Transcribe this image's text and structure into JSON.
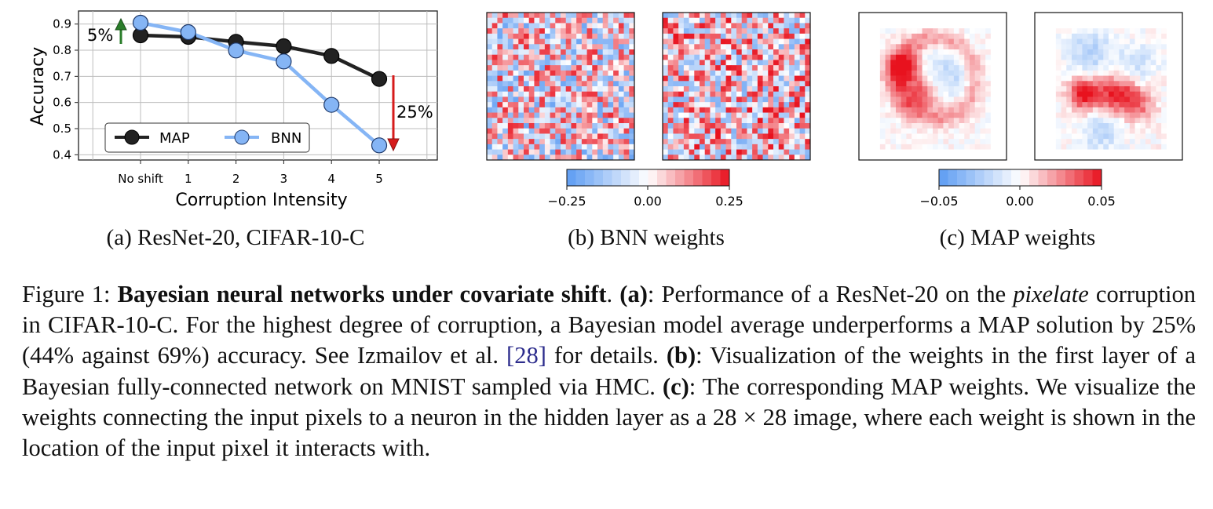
{
  "chart_data": {
    "type": "line",
    "title": "",
    "xlabel": "Corruption Intensity",
    "ylabel": "Accuracy",
    "categories": [
      "No shift",
      "1",
      "2",
      "3",
      "4",
      "5"
    ],
    "yticks": [
      "0.4",
      "0.5",
      "0.6",
      "0.7",
      "0.8",
      "0.9"
    ],
    "ylim": [
      0.38,
      0.95
    ],
    "grid": true,
    "legend_position": "lower-left",
    "series": [
      {
        "name": "MAP",
        "values": [
          0.857,
          0.851,
          0.832,
          0.815,
          0.778,
          0.69
        ],
        "color": "#222222"
      },
      {
        "name": "BNN",
        "values": [
          0.905,
          0.869,
          0.799,
          0.757,
          0.591,
          0.436
        ],
        "color": "#85b5f5"
      }
    ],
    "annotations": [
      {
        "text": "5%",
        "direction": "up",
        "color": "#2a7d2a"
      },
      {
        "text": "25%",
        "direction": "down",
        "color": "#d61b1b"
      }
    ]
  },
  "heatmaps": {
    "colormap": [
      "#5c9bf2",
      "#ffffff",
      "#e8121e"
    ],
    "bnn_colorbar_ticks": [
      "−0.25",
      "0.00",
      "0.25"
    ],
    "map_colorbar_ticks": [
      "−0.05",
      "0.00",
      "0.05"
    ]
  },
  "subcaptions": {
    "a": "(a) ResNet-20, CIFAR-10-C",
    "b": "(b) BNN weights",
    "c": "(c) MAP weights"
  },
  "caption": {
    "label": "Figure 1: ",
    "title": "Bayesian neural networks under covariate shift",
    "after_title": ". ",
    "a_label": "(a)",
    "a_text": ": Performance of a ResNet-20 on the ",
    "a_italic": "pixelate",
    "a_text2": " corruption in CIFAR-10-C. For the highest degree of corruption, a Bayesian model average underperforms a MAP solution by 25% (44% against 69%) accuracy. See Izmailov et al. ",
    "ref": "[28]",
    "a_text3": " for details. ",
    "b_label": "(b)",
    "b_text": ": Visualization of the weights in the first layer of a Bayesian fully-connected network on MNIST sampled via HMC. ",
    "c_label": "(c)",
    "c_text": ": The corresponding MAP weights. We visualize the weights connecting the input pixels to a neuron in the hidden layer as a 28 × 28 image, where each weight is shown in the location of the input pixel it interacts with."
  }
}
